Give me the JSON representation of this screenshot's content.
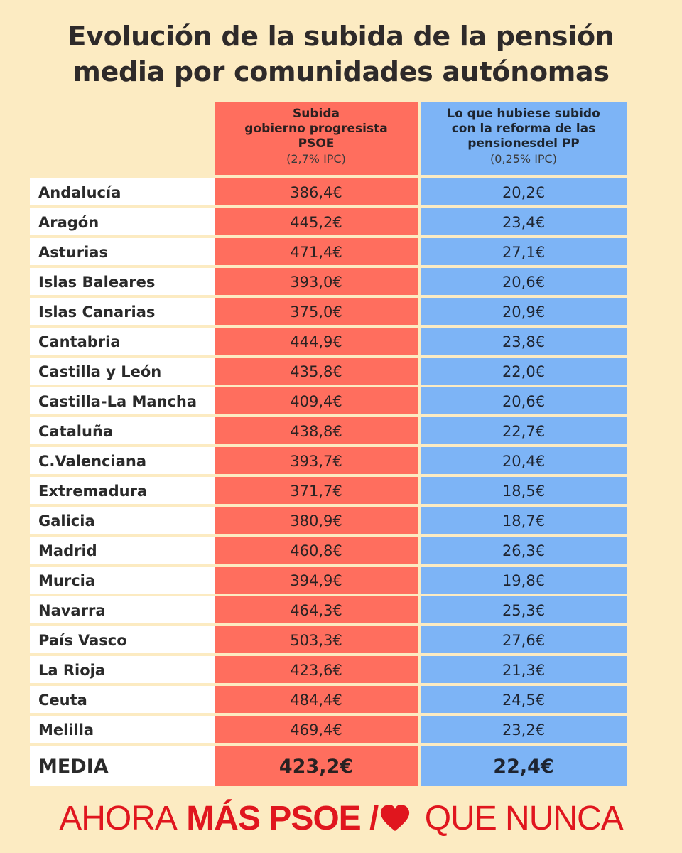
{
  "title": {
    "line1": "Evolución de la subida de la pensión",
    "line2": "media por comunidades autónomas"
  },
  "columns": {
    "psoe": {
      "line1": "Subida",
      "line2": "gobierno progresista",
      "line3": "PSOE",
      "note": "(2,7% IPC)"
    },
    "pp": {
      "line1": "Lo que hubiese subido",
      "line2": "con la reforma de las",
      "line3": "pensionesdel PP",
      "note": "(0,25% IPC)"
    }
  },
  "rows": [
    {
      "name": "Andalucía",
      "psoe": "386,4€",
      "pp": "20,2€"
    },
    {
      "name": "Aragón",
      "psoe": "445,2€",
      "pp": "23,4€"
    },
    {
      "name": "Asturias",
      "psoe": "471,4€",
      "pp": "27,1€"
    },
    {
      "name": "Islas Baleares",
      "psoe": "393,0€",
      "pp": "20,6€"
    },
    {
      "name": "Islas Canarias",
      "psoe": "375,0€",
      "pp": "20,9€"
    },
    {
      "name": "Cantabria",
      "psoe": "444,9€",
      "pp": "23,8€"
    },
    {
      "name": "Castilla y León",
      "psoe": "435,8€",
      "pp": "22,0€"
    },
    {
      "name": "Castilla-La Mancha",
      "psoe": "409,4€",
      "pp": "20,6€"
    },
    {
      "name": "Cataluña",
      "psoe": "438,8€",
      "pp": "22,7€"
    },
    {
      "name": "C.Valenciana",
      "psoe": "393,7€",
      "pp": "20,4€"
    },
    {
      "name": "Extremadura",
      "psoe": "371,7€",
      "pp": "18,5€"
    },
    {
      "name": "Galicia",
      "psoe": "380,9€",
      "pp": "18,7€"
    },
    {
      "name": "Madrid",
      "psoe": "460,8€",
      "pp": "26,3€"
    },
    {
      "name": "Murcia",
      "psoe": "394,9€",
      "pp": "19,8€"
    },
    {
      "name": "Navarra",
      "psoe": "464,3€",
      "pp": "25,3€"
    },
    {
      "name": "País Vasco",
      "psoe": "503,3€",
      "pp": "27,6€"
    },
    {
      "name": "La Rioja",
      "psoe": "423,6€",
      "pp": "21,3€"
    },
    {
      "name": "Ceuta",
      "psoe": "484,4€",
      "pp": "24,5€"
    },
    {
      "name": "Melilla",
      "psoe": "469,4€",
      "pp": "23,2€"
    }
  ],
  "total": {
    "name": "MEDIA",
    "psoe": "423,2€",
    "pp": "22,4€"
  },
  "footer": {
    "part1": "AHORA",
    "part2": "MÁS PSOE /",
    "part3": "QUE NUNCA",
    "heart_icon": "heart-icon"
  },
  "colors": {
    "background": "#fcebc2",
    "psoe_red": "#ff6e5e",
    "pp_blue": "#7db4f6",
    "footer_red": "#e0161e"
  }
}
